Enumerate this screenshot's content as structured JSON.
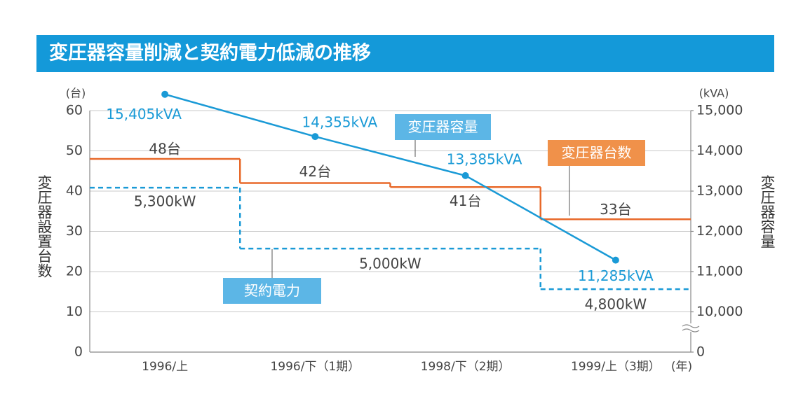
{
  "chart_data": {
    "type": "line",
    "title": "変圧器容量削減と契約電力低減の推移",
    "ylabel": "変圧器設置台数",
    "y2label": "変圧器容量",
    "yunit": "(台)",
    "y2unit": "(kVA)",
    "xunit": "(年)",
    "categories": [
      "1996/上",
      "1996/下（1期）",
      "1998/下（2期）",
      "1999/上（3期）"
    ],
    "ylim": [
      0,
      60
    ],
    "yticks": [
      0,
      10,
      20,
      30,
      40,
      50,
      60
    ],
    "y2lim": [
      0,
      15000
    ],
    "y2break": [
      0,
      10000
    ],
    "y2ticks": [
      0,
      {
        "value": 10000,
        "label": "10,000"
      },
      {
        "value": 11000,
        "label": "11,000"
      },
      {
        "value": 12000,
        "label": "12,000"
      },
      {
        "value": 13000,
        "label": "13,000"
      },
      {
        "value": 14000,
        "label": "14,000"
      },
      {
        "value": 15000,
        "label": "15,000"
      }
    ],
    "y3lim": [
      4490,
      5680
    ],
    "grid": true,
    "series": [
      {
        "name": "変圧器台数",
        "color": "#e8692a",
        "box_color": "#f0914a",
        "style": "step",
        "values": [
          48,
          42,
          41,
          33
        ],
        "value_labels": [
          "48台",
          "42台",
          "41台",
          "33台"
        ]
      },
      {
        "name": "契約電力",
        "color": "#1a9ad6",
        "box_color": "#5cb6e6",
        "style": "dashed-step",
        "axis": "y3",
        "values": [
          5300,
          5000,
          5000,
          4800
        ],
        "value_labels": [
          "5,300kW",
          "5,000kW",
          null,
          "4,800kW"
        ]
      },
      {
        "name": "変圧器容量",
        "color": "#1a9ad6",
        "box_color": "#5cb6e6",
        "style": "line",
        "axis": "y2",
        "values": [
          15405,
          14355,
          13385,
          11285
        ],
        "value_labels": [
          "15,405kVA",
          "14,355kVA",
          "13,385kVA",
          "11,285kVA"
        ]
      }
    ]
  }
}
